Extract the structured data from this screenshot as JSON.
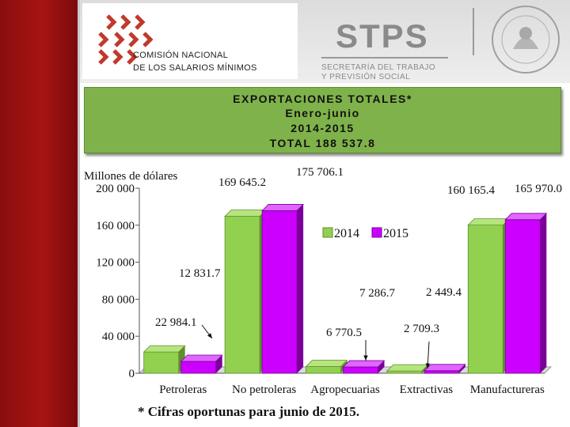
{
  "header": {
    "org_line1": "COMISIÓN NACIONAL",
    "org_line2": "DE LOS SALARIOS MÍNIMOS",
    "stps": "STPS",
    "stps_sub1": "SECRETARÍA DEL TRABAJO",
    "stps_sub2": "Y PREVISIÓN SOCIAL"
  },
  "title_box": {
    "line1": "EXPORTACIONES TOTALES*",
    "line2": "Enero-junio",
    "line3": "2014-2015",
    "line4": "TOTAL  188 537.8"
  },
  "footnote": "* Cifras oportunas para junio de 2015.",
  "colors": {
    "series_2014": "#92d050",
    "series_2015": "#cc00ff",
    "title_bg": "#7fb24a",
    "sidebar": "#a81414"
  },
  "chart_data": {
    "type": "bar",
    "ylabel": "Millones de dólares",
    "ylim": [
      0,
      200000
    ],
    "yticks": [
      "0",
      "40 000",
      "80 000",
      "120 000",
      "160 000",
      "200 000"
    ],
    "categories": [
      "Petroleras",
      "No petroleras",
      "Agropecuarias",
      "Extractivas",
      "Manufactureras"
    ],
    "series": [
      {
        "name": "2014",
        "values": [
          22984.1,
          169645.2,
          7286.7,
          2449.4,
          160165.4
        ]
      },
      {
        "name": "2015",
        "values": [
          12831.7,
          175706.1,
          6770.5,
          2709.3,
          165970.0
        ]
      }
    ],
    "data_labels": [
      [
        "22 984.1",
        "169 645.2",
        "7 286.7",
        "2 449.4",
        "160 165.4"
      ],
      [
        "12 831.7",
        "175 706.1",
        "6 770.5",
        "2 709.3",
        "165 970.0"
      ]
    ],
    "legend": "center-right"
  }
}
